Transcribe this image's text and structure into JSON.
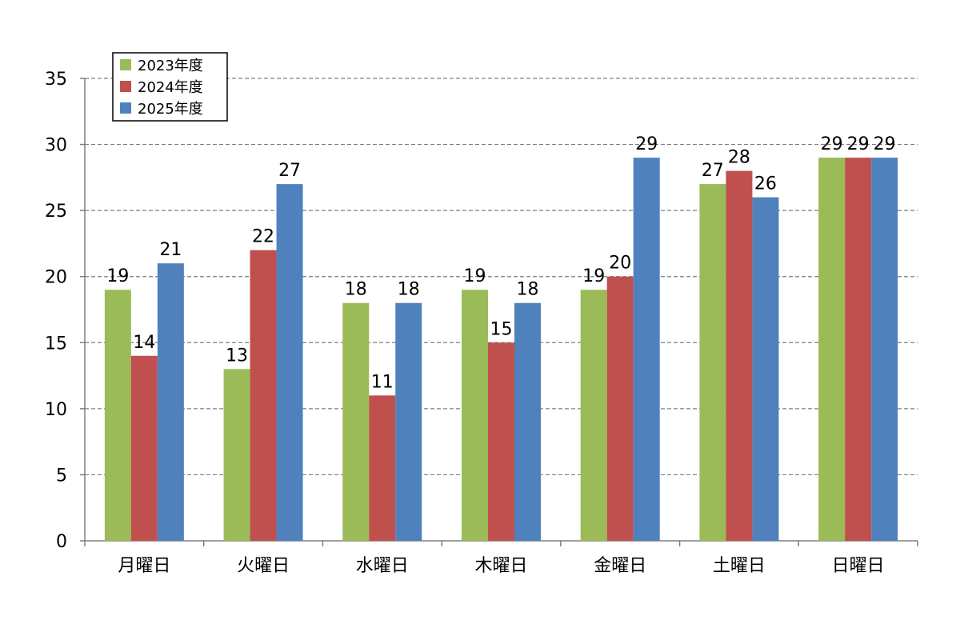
{
  "chart_data": {
    "type": "bar",
    "categories": [
      "月曜日",
      "火曜日",
      "水曜日",
      "木曜日",
      "金曜日",
      "土曜日",
      "日曜日"
    ],
    "series": [
      {
        "name": "2023年度",
        "color": "#9bbb59",
        "values": [
          19,
          13,
          18,
          19,
          19,
          27,
          29
        ]
      },
      {
        "name": "2024年度",
        "color": "#c0504d",
        "values": [
          14,
          22,
          11,
          15,
          20,
          28,
          29
        ]
      },
      {
        "name": "2025年度",
        "color": "#4f81bd",
        "values": [
          21,
          27,
          18,
          18,
          29,
          26,
          29
        ]
      }
    ],
    "ylim": [
      0,
      35
    ],
    "yticks": [
      0,
      5,
      10,
      15,
      20,
      25,
      30,
      35
    ],
    "grid": true,
    "grid_style": "dashed",
    "legend_position": "top-left",
    "data_labels": true
  }
}
